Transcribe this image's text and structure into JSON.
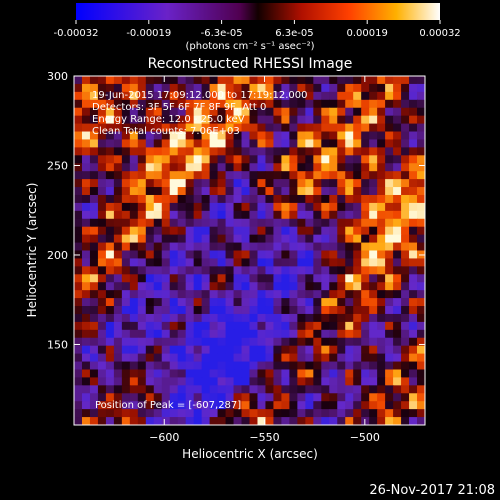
{
  "chart_data": {
    "type": "heatmap",
    "title": "Reconstructed RHESSI Image",
    "xlabel": "Heliocentric X (arcsec)",
    "ylabel": "Heliocentric Y (arcsec)",
    "xlim": [
      -645,
      -470
    ],
    "ylim": [
      105,
      300
    ],
    "xticks": [
      -600,
      -550,
      -500
    ],
    "yticks": [
      150,
      200,
      250,
      300
    ],
    "colormap": "blue-purple-red-yellow-white",
    "colorbar": {
      "range": [
        -0.00032,
        0.00032
      ],
      "ticks": [
        "-0.00032",
        "-0.00019",
        "-6.3e-05",
        "6.3e-05",
        "0.00019",
        "0.00032"
      ],
      "unit_label": "(photons cm⁻² s⁻¹ asec⁻²)"
    },
    "annotations": [
      "19-Jun-2015 17:09:12.000 to 17:19:12.000",
      "Detectors: 3F 5F 6F 7F 8F 9F, Att 0",
      "Energy Range: 12.0 - 25.0 keV",
      "Clean    Total counts: 7.06E+03"
    ],
    "peak_text": "Position of Peak = [-607,287]",
    "peak_position": [
      -607,
      287
    ],
    "timestamp": "26-Nov-2017 21:08"
  }
}
